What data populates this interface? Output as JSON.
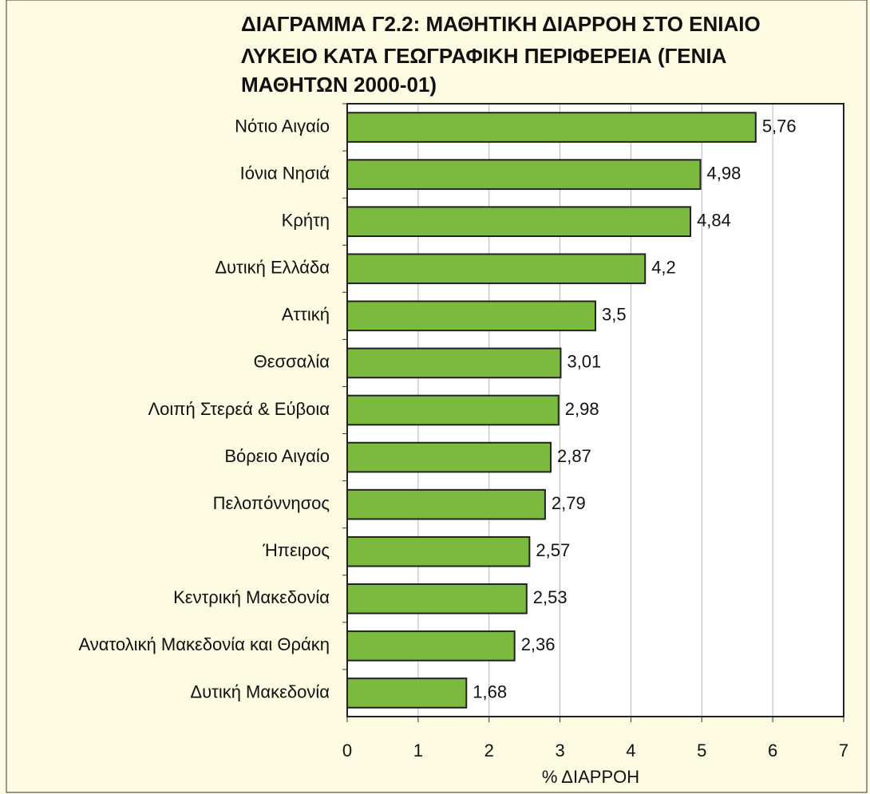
{
  "chart_data": {
    "type": "bar",
    "orientation": "horizontal",
    "title": [
      "ΔΙΑΓΡΑΜΜΑ Γ2.2:    ΜΑΘΗΤΙΚΗ ΔΙΑΡΡΟΗ ΣΤΟ ΕΝΙΑΙΟ",
      "ΛΥΚΕΙΟ ΚΑΤΑ ΓΕΩΓΡΑΦΙΚΗ ΠΕΡΙΦΕΡΕΙΑ (ΓΕΝΙΑ",
      "ΜΑΘΗΤΩΝ 2000-01)"
    ],
    "x_label": "% ΔΙΑΡΡΟΗ",
    "categories": [
      "Νότιο Αιγαίο",
      "Ιόνια Νησιά",
      "Κρήτη",
      "Δυτική Ελλάδα",
      "Αττική",
      "Θεσσαλία",
      "Λοιπή Στερεά & Εύβοια",
      "Βόρειο Αιγαίο",
      "Πελοπόννησος",
      "Ήπειρος",
      "Κεντρική Μακεδονία",
      "Ανατολική Μακεδονία και Θράκη",
      "Δυτική Μακεδονία"
    ],
    "values": [
      5.76,
      4.98,
      4.84,
      4.2,
      3.5,
      3.01,
      2.98,
      2.87,
      2.79,
      2.57,
      2.53,
      2.36,
      1.68
    ],
    "value_labels": [
      "5,76",
      "4,98",
      "4,84",
      "4,2",
      "3,5",
      "3,01",
      "2,98",
      "2,87",
      "2,79",
      "2,57",
      "2,53",
      "2,36",
      "1,68"
    ],
    "color": "#7cb93f",
    "xlim": [
      0,
      7
    ],
    "xticks": [
      0,
      1,
      2,
      3,
      4,
      5,
      6,
      7
    ],
    "grid": true
  }
}
